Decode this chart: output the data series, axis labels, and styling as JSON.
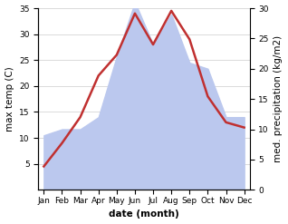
{
  "months": [
    "Jan",
    "Feb",
    "Mar",
    "Apr",
    "May",
    "Jun",
    "Jul",
    "Aug",
    "Sep",
    "Oct",
    "Nov",
    "Dec"
  ],
  "temperature": [
    4.5,
    9.0,
    14.0,
    22.0,
    26.0,
    34.0,
    28.0,
    34.5,
    29.0,
    18.0,
    13.0,
    12.0
  ],
  "precipitation": [
    9,
    10,
    10,
    12,
    22,
    31,
    24,
    29,
    21,
    20,
    12,
    12
  ],
  "temp_color": "#c03030",
  "precip_color": "#bbc8ee",
  "left_ylim": [
    0,
    35
  ],
  "right_ylim": [
    0,
    30
  ],
  "left_yticks": [
    5,
    10,
    15,
    20,
    25,
    30,
    35
  ],
  "right_yticks": [
    0,
    5,
    10,
    15,
    20,
    25,
    30
  ],
  "xlabel": "date (month)",
  "ylabel_left": "max temp (C)",
  "ylabel_right": "med. precipitation (kg/m2)",
  "bg_color": "#ffffff",
  "grid_color": "#cccccc",
  "label_fontsize": 7.5,
  "tick_fontsize": 6.5
}
